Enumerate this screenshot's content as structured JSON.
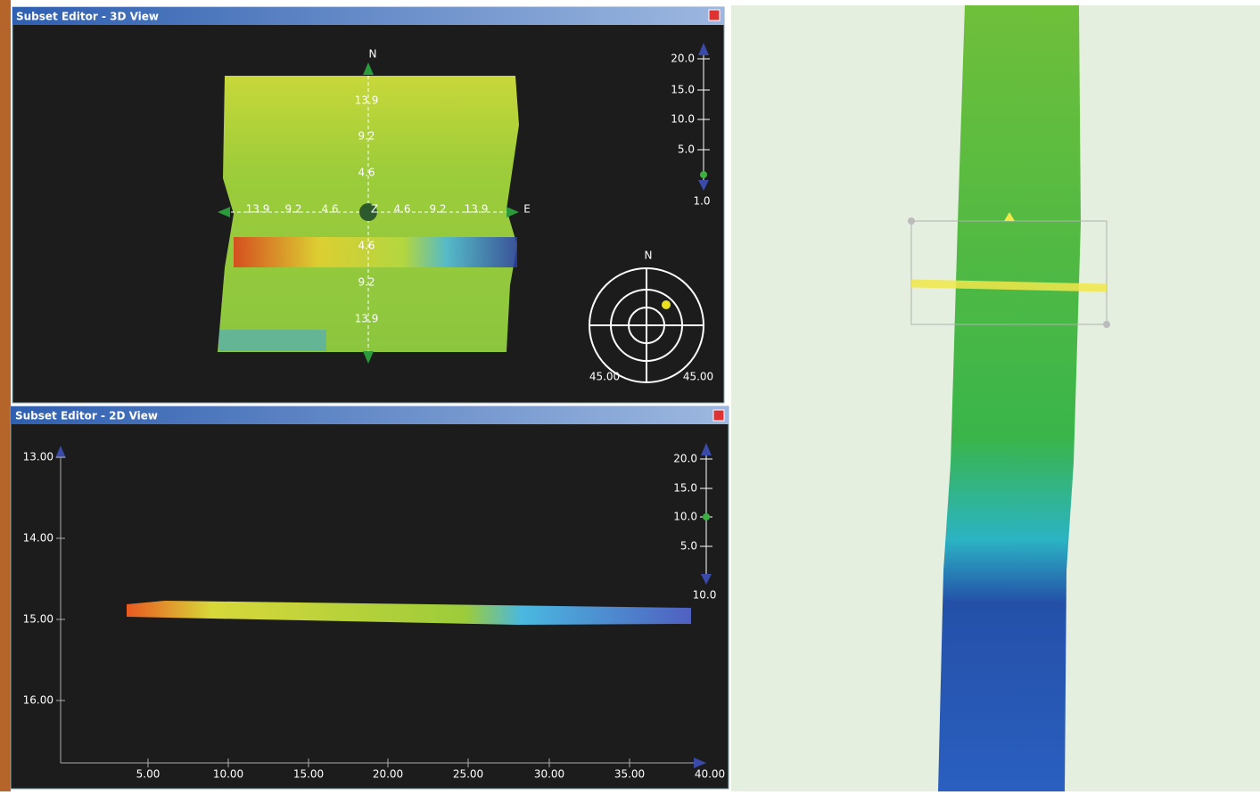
{
  "windows": [
    {
      "title": "Subset Editor - 3D View",
      "compass_labels": {
        "north": "N",
        "east": "E",
        "center": "Z"
      },
      "axis_labels_horizontal": [
        "13.9",
        "9.2",
        "4.6",
        "4.6",
        "9.2",
        "13.9"
      ],
      "axis_labels_vertical": [
        "13.9",
        "9.2",
        "4.6",
        "4.6",
        "9.2",
        "13.9"
      ],
      "zoom_scale": {
        "ticks": [
          "20.0",
          "15.0",
          "10.0",
          "5.0"
        ],
        "value": "1.0"
      },
      "orientation": {
        "north": "N",
        "left": "45.00",
        "right": "45.00"
      }
    },
    {
      "title": "Subset Editor - 2D View",
      "yticks": [
        "13.00",
        "14.00",
        "15.00",
        "16.00"
      ],
      "xticks": [
        "5.00",
        "10.00",
        "15.00",
        "20.00",
        "25.00",
        "30.00",
        "35.00",
        "40.00"
      ],
      "zoom_scale": {
        "ticks": [
          "20.0",
          "15.0",
          "10.0",
          "5.0"
        ],
        "value": "10.0"
      }
    }
  ]
}
